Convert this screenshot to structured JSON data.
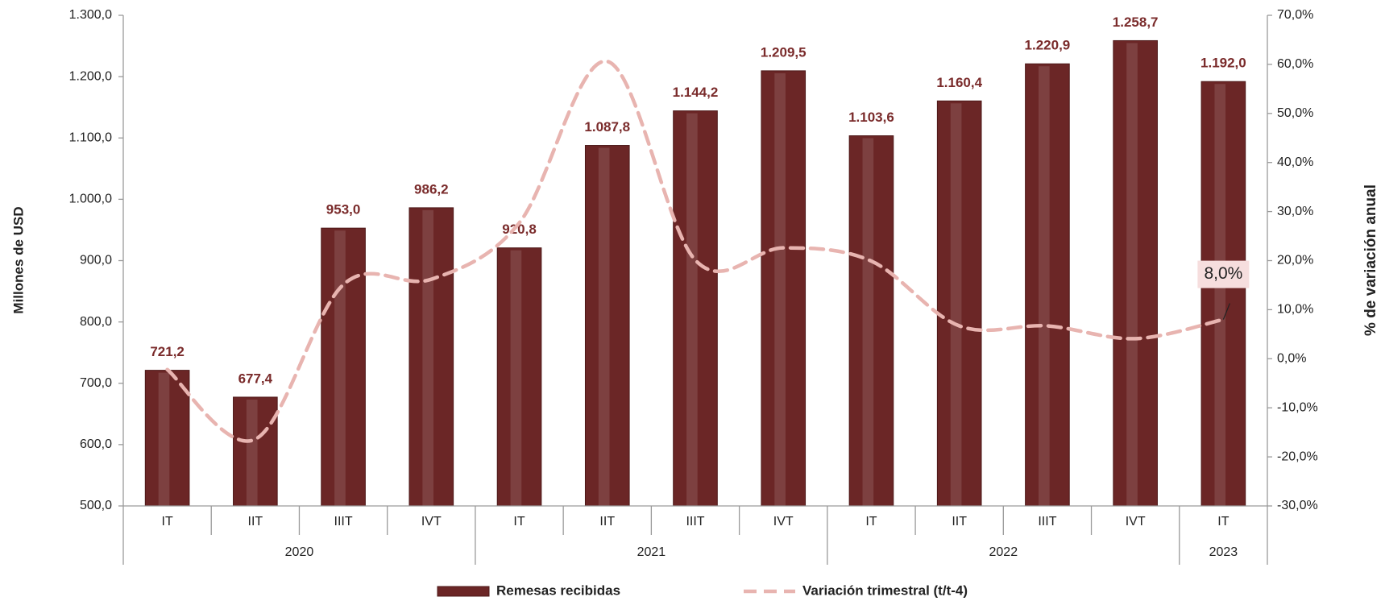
{
  "chart_data": {
    "type": "bar-line",
    "y_label": "Millones de USD",
    "y2_label": "% de variación anual",
    "categories": [
      "IT",
      "IIT",
      "IIIT",
      "IVT",
      "IT",
      "IIT",
      "IIIT",
      "IVT",
      "IT",
      "IIT",
      "IIIT",
      "IVT",
      "IT"
    ],
    "years": [
      "2020",
      "2020",
      "2020",
      "2020",
      "2021",
      "2021",
      "2021",
      "2021",
      "2022",
      "2022",
      "2022",
      "2022",
      "2023"
    ],
    "series": [
      {
        "name": "Remesas recibidas",
        "type": "bar",
        "color": "#6b2626",
        "values": [
          721.2,
          677.4,
          953.0,
          986.2,
          920.8,
          1087.8,
          1144.2,
          1209.5,
          1103.6,
          1160.4,
          1220.9,
          1258.7,
          1192.0
        ],
        "value_labels": [
          "721,2",
          "677,4",
          "953,0",
          "986,2",
          "920,8",
          "1.087,8",
          "1.144,2",
          "1.209,5",
          "1.103,6",
          "1.160,4",
          "1.220,9",
          "1.258,7",
          "1.192,0"
        ]
      },
      {
        "name": "Variación trimestral (t/t-4)",
        "type": "line",
        "axis": "y2",
        "color": "#e8b4b0",
        "values": [
          -2.2,
          -16.4,
          15.1,
          16.2,
          27.7,
          60.6,
          20.1,
          22.6,
          19.9,
          6.7,
          6.7,
          4.1,
          8.0
        ],
        "value_labels": [
          null,
          null,
          null,
          null,
          null,
          null,
          null,
          null,
          null,
          null,
          null,
          null,
          "8,0%"
        ]
      }
    ],
    "ylim": [
      500,
      1300
    ],
    "yticks": [
      {
        "value": 500,
        "label": "500,0"
      },
      {
        "value": 600,
        "label": "600,0"
      },
      {
        "value": 700,
        "label": "700,0"
      },
      {
        "value": 800,
        "label": "800,0"
      },
      {
        "value": 900,
        "label": "900,0"
      },
      {
        "value": 1000,
        "label": "1.000,0"
      },
      {
        "value": 1100,
        "label": "1.100,0"
      },
      {
        "value": 1200,
        "label": "1.200,0"
      },
      {
        "value": 1300,
        "label": "1.300,0"
      }
    ],
    "y2lim": [
      -30,
      70
    ],
    "y2ticks": [
      {
        "value": -30,
        "label": "-30,0%"
      },
      {
        "value": -20,
        "label": "-20,0%"
      },
      {
        "value": -10,
        "label": "-10,0%"
      },
      {
        "value": 0,
        "label": "0,0%"
      },
      {
        "value": 10,
        "label": "10,0%"
      },
      {
        "value": 20,
        "label": "20,0%"
      },
      {
        "value": 30,
        "label": "30,0%"
      },
      {
        "value": 40,
        "label": "40,0%"
      },
      {
        "value": 50,
        "label": "50,0%"
      },
      {
        "value": 60,
        "label": "60,0%"
      },
      {
        "value": 70,
        "label": "70,0%"
      }
    ],
    "grid": false,
    "legend": "bottom"
  }
}
